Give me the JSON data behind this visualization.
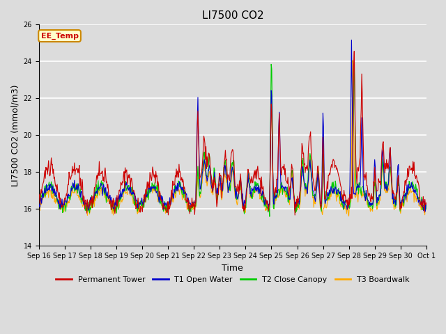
{
  "title": "LI7500 CO2",
  "ylabel": "LI7500 CO2 (mmol/m3)",
  "xlabel": "Time",
  "ylim": [
    14,
    26
  ],
  "yticks": [
    14,
    16,
    18,
    20,
    22,
    24,
    26
  ],
  "date_labels": [
    "Sep 16",
    "Sep 17",
    "Sep 18",
    "Sep 19",
    "Sep 20",
    "Sep 21",
    "Sep 22",
    "Sep 23",
    "Sep 24",
    "Sep 25",
    "Sep 26",
    "Sep 27",
    "Sep 28",
    "Sep 29",
    "Sep 30",
    "Oct 1"
  ],
  "colors": {
    "permanent_tower": "#cc0000",
    "t1_open_water": "#0000cc",
    "t2_close_canopy": "#00cc00",
    "t3_boardwalk": "#ffaa00"
  },
  "legend": [
    "Permanent Tower",
    "T1 Open Water",
    "T2 Close Canopy",
    "T3 Boardwalk"
  ],
  "annotation_text": "EE_Temp",
  "annotation_color": "#cc0000",
  "annotation_bg": "#ffffcc",
  "annotation_border": "#cc8800",
  "bg_color": "#dcdcdc",
  "grid_color": "#ffffff",
  "title_fontsize": 11,
  "label_fontsize": 9,
  "tick_fontsize": 8,
  "n_days": 15,
  "pts_per_day": 48
}
